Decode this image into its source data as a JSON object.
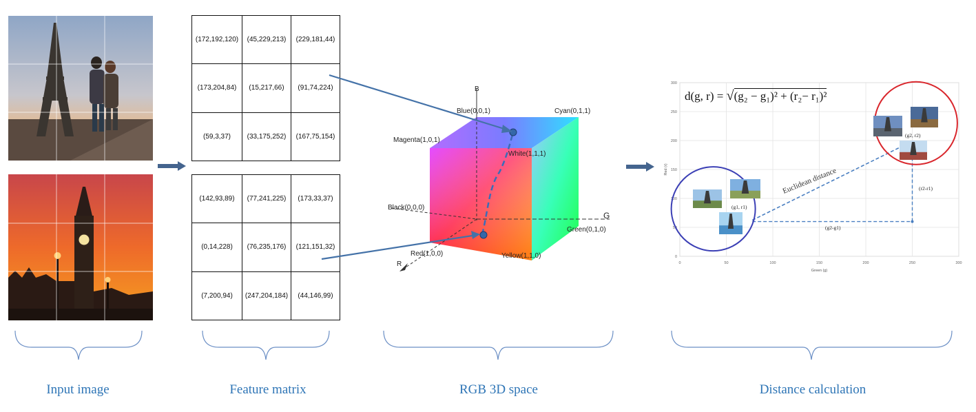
{
  "labels": {
    "input_image": "Input image",
    "feature_matrix": "Feature matrix",
    "rgb_space": "RGB 3D space",
    "distance_calculation": "Distance calculation"
  },
  "feature_matrix_top": [
    [
      "(172,192,120)",
      "(45,229,213)",
      "(229,181,44)"
    ],
    [
      "(173,204,84)",
      "(15,217,66)",
      "(91,74,224)"
    ],
    [
      "(59,3,37)",
      "(33,175,252)",
      "(167,75,154)"
    ]
  ],
  "feature_matrix_bottom": [
    [
      "(142,93,89)",
      "(77,241,225)",
      "(173,33,37)"
    ],
    [
      "(0,14,228)",
      "(76,235,176)",
      "(121,151,32)"
    ],
    [
      "(7,200,94)",
      "(247,204,184)",
      "(44,146,99)"
    ]
  ],
  "cube": {
    "axis_b": "B",
    "axis_g": "G",
    "axis_r": "R",
    "blue": "Blue(0,0,1)",
    "cyan": "Cyan(0,1,1)",
    "magenta": "Magenta(1,0,1)",
    "white": "White(1,1,1)",
    "black": "Black(0,0,0)",
    "green": "Green(0,1,0)",
    "red": "Red(1,0,0)",
    "yellow": "Yellow(1,1,0)"
  },
  "distance_chart": {
    "formula_lhs": "d(g, r) = ",
    "formula_rhs": "(g₂ − g₁)² + (r₂− r₁)²",
    "point1_label": "(g1, r1)",
    "point2_label": "(g2, r2)",
    "euclidean_label": "Euclidean distance",
    "dg_label": "(g2-g1)",
    "dr_label": "(r2-r1)",
    "xlabel": "Green (g)",
    "ylabel": "Red (r)"
  },
  "chart_data": {
    "type": "scatter",
    "xlabel": "Green (g)",
    "ylabel": "Red (r)",
    "xlim": [
      0,
      300
    ],
    "ylim": [
      0,
      300
    ],
    "xticks": [
      "0",
      "50",
      "100",
      "150",
      "200",
      "250",
      "300"
    ],
    "yticks": [
      "0",
      "50",
      "100",
      "150",
      "200",
      "250",
      "300"
    ],
    "grid": true,
    "points": [
      {
        "label": "(g1, r1)",
        "x": 72,
        "y": 60
      },
      {
        "label": "(g2, r2)",
        "x": 250,
        "y": 200
      }
    ],
    "colors": {
      "circle1": "#3b3fb5",
      "circle2": "#d9262c",
      "line": "#4a7fc1"
    }
  },
  "colors": {
    "accent": "#2e75b6",
    "arrow": "#4472a8"
  }
}
